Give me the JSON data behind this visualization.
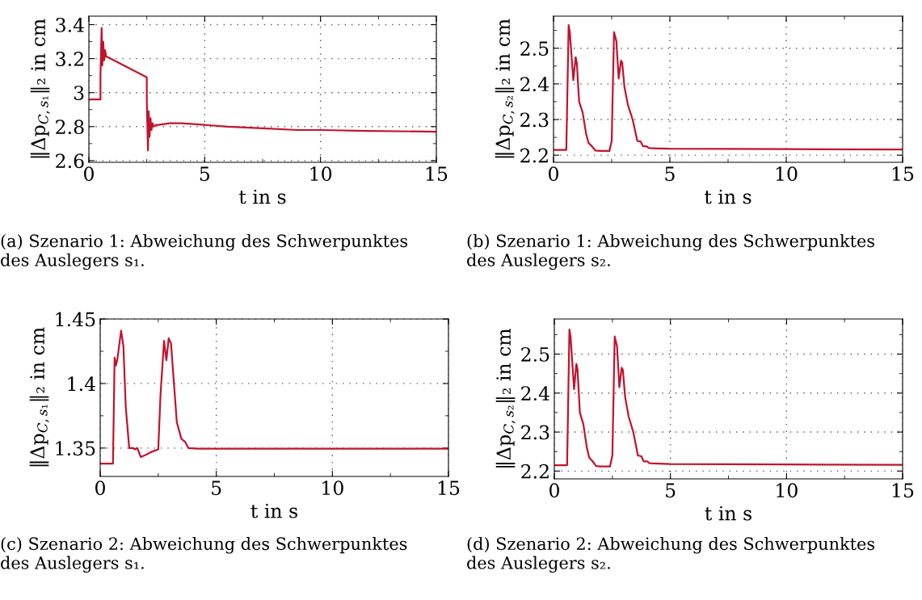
{
  "chart_data": [
    {
      "type": "line",
      "xlabel": "t in s",
      "ylabel": "‖Δp$_{C,s₁}$‖₂ in cm",
      "xlim": [
        0,
        15
      ],
      "ylim": [
        2.59,
        3.45
      ],
      "xticks": [
        0,
        5,
        10,
        15
      ],
      "yticks": [
        2.6,
        2.8,
        {
          "value": 3,
          "label": "3"
        },
        3.2,
        3.4
      ],
      "grid": true,
      "annotations": [
        "(a) Szenario 1: Abweichung des Schwerpunktes des Auslegers s₁."
      ],
      "series": [
        {
          "color": "#c0142e",
          "x": [
            0,
            0.5,
            0.5,
            0.55,
            0.58,
            0.62,
            0.66,
            0.7,
            0.75,
            0.8,
            2.5,
            2.5,
            2.55,
            2.58,
            2.62,
            2.66,
            2.7,
            2.75,
            2.8,
            2.9,
            3.0,
            3.5,
            4.0,
            5.0,
            6.0,
            7.5,
            9.0,
            10.0,
            12.0,
            15.0
          ],
          "values": [
            2.96,
            2.96,
            3.1,
            3.38,
            3.16,
            3.3,
            3.19,
            3.25,
            3.21,
            3.21,
            3.09,
            2.95,
            2.66,
            2.89,
            2.74,
            2.85,
            2.78,
            2.82,
            2.8,
            2.81,
            2.81,
            2.82,
            2.82,
            2.81,
            2.8,
            2.79,
            2.78,
            2.78,
            2.775,
            2.77
          ]
        }
      ]
    },
    {
      "type": "line",
      "xlabel": "t in s",
      "ylabel": "‖Δp$_{C,s₂}$‖₂ in cm",
      "xlim": [
        0,
        15
      ],
      "ylim": [
        2.18,
        2.59
      ],
      "xticks": [
        0,
        5,
        10,
        15
      ],
      "yticks": [
        2.2,
        2.3,
        2.4,
        2.5
      ],
      "grid": true,
      "annotations": [
        "(b) Szenario 1: Abweichung des Schwerpunktes des Auslegers s₂."
      ],
      "series": [
        {
          "color": "#c0142e",
          "x": [
            0,
            0.55,
            0.65,
            0.7,
            0.85,
            0.95,
            1.0,
            1.1,
            1.25,
            1.4,
            1.5,
            1.65,
            1.8,
            2.0,
            2.4,
            2.5,
            2.6,
            2.7,
            2.8,
            2.9,
            2.95,
            3.05,
            3.2,
            3.4,
            3.6,
            3.75,
            3.85,
            4.0,
            4.1,
            4.5,
            5.0,
            10.0,
            15.0
          ],
          "values": [
            2.215,
            2.215,
            2.565,
            2.545,
            2.41,
            2.475,
            2.46,
            2.35,
            2.32,
            2.26,
            2.235,
            2.225,
            2.213,
            2.212,
            2.212,
            2.24,
            2.545,
            2.52,
            2.415,
            2.465,
            2.46,
            2.39,
            2.34,
            2.3,
            2.24,
            2.238,
            2.225,
            2.225,
            2.22,
            2.219,
            2.218,
            2.217,
            2.216
          ]
        }
      ]
    },
    {
      "type": "line",
      "xlabel": "t in s",
      "ylabel": "‖Δp$_{C,s₁}$‖₂ in cm",
      "xlim": [
        0,
        15
      ],
      "ylim": [
        1.328,
        1.45
      ],
      "xticks": [
        0,
        5,
        10,
        15
      ],
      "yticks": [
        1.35,
        {
          "value": 1.4,
          "label": "1.4"
        },
        1.45
      ],
      "grid": true,
      "annotations": [
        "(c) Szenario 2: Abweichung des Schwerpunktes des Auslegers s₁."
      ],
      "series": [
        {
          "color": "#c0142e",
          "x": [
            0,
            0.55,
            0.62,
            0.68,
            0.75,
            0.9,
            1.0,
            1.1,
            1.25,
            1.4,
            1.5,
            1.6,
            1.75,
            2.0,
            2.2,
            2.5,
            2.6,
            2.75,
            2.85,
            2.95,
            3.05,
            3.3,
            3.5,
            3.65,
            3.8,
            4.2,
            5.0,
            10.0,
            15.0
          ],
          "values": [
            1.338,
            1.338,
            1.42,
            1.414,
            1.42,
            1.441,
            1.429,
            1.382,
            1.35,
            1.35,
            1.349,
            1.35,
            1.343,
            1.345,
            1.347,
            1.349,
            1.392,
            1.433,
            1.418,
            1.435,
            1.431,
            1.37,
            1.357,
            1.355,
            1.35,
            1.3495,
            1.3495,
            1.3495,
            1.3495
          ]
        }
      ]
    },
    {
      "type": "line",
      "xlabel": "t in s",
      "ylabel": "‖Δp$_{C,s₂}$‖₂ in cm",
      "xlim": [
        0,
        15
      ],
      "ylim": [
        2.18,
        2.59
      ],
      "xticks": [
        0,
        5,
        10,
        15
      ],
      "yticks": [
        2.2,
        2.3,
        2.4,
        2.5
      ],
      "grid": true,
      "annotations": [
        "(d) Szenario 2: Abweichung des Schwerpunktes des Auslegers s₂."
      ],
      "series": [
        {
          "color": "#c0142e",
          "x": [
            0,
            0.55,
            0.65,
            0.7,
            0.85,
            0.95,
            1.0,
            1.1,
            1.25,
            1.4,
            1.5,
            1.65,
            1.8,
            2.0,
            2.4,
            2.5,
            2.6,
            2.7,
            2.8,
            2.9,
            2.95,
            3.05,
            3.2,
            3.4,
            3.6,
            3.75,
            3.85,
            4.0,
            4.1,
            4.5,
            5.0,
            10.0,
            15.0
          ],
          "values": [
            2.215,
            2.215,
            2.563,
            2.545,
            2.41,
            2.475,
            2.46,
            2.35,
            2.32,
            2.26,
            2.235,
            2.225,
            2.213,
            2.212,
            2.212,
            2.24,
            2.545,
            2.52,
            2.415,
            2.465,
            2.46,
            2.39,
            2.34,
            2.3,
            2.24,
            2.238,
            2.225,
            2.225,
            2.22,
            2.219,
            2.218,
            2.217,
            2.216
          ]
        }
      ]
    }
  ]
}
